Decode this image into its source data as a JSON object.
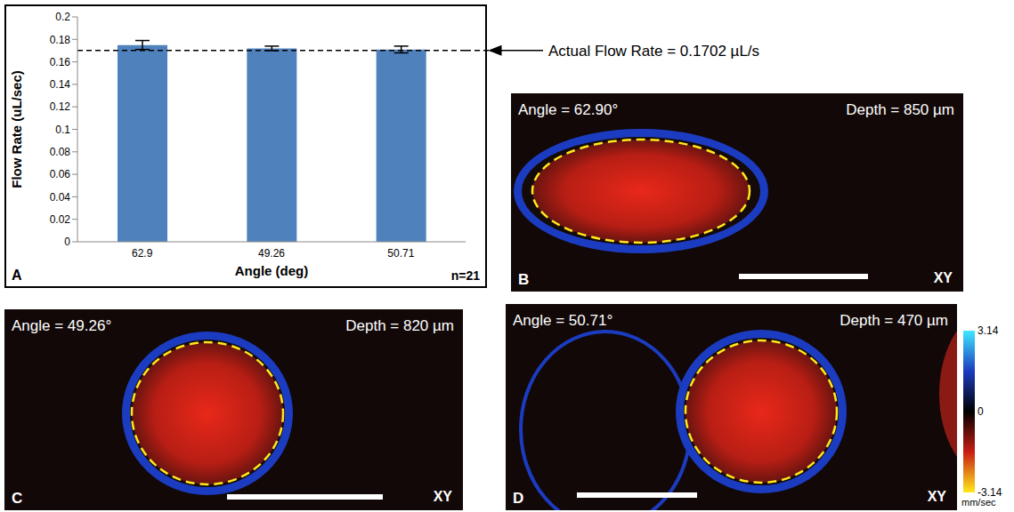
{
  "chart_data": {
    "type": "bar",
    "panel_label": "A",
    "categories": [
      "62.9",
      "49.26",
      "50.71"
    ],
    "values": [
      0.175,
      0.172,
      0.171
    ],
    "errors": [
      0.004,
      0.002,
      0.003
    ],
    "color": "#4f81bd",
    "xlabel": "Angle (deg)",
    "ylabel": "Flow Rate (uL/sec)",
    "ylim": [
      0,
      0.2
    ],
    "yticks": [
      0,
      0.02,
      0.04,
      0.06,
      0.08,
      0.1,
      0.12,
      0.14,
      0.16,
      0.18,
      0.2
    ],
    "annotation": "n=21",
    "reference_line": {
      "value": 0.1702,
      "label": "Actual Flow Rate = 0.1702 µL/s",
      "line_style": "dashed"
    }
  },
  "images": [
    {
      "panel_label": "B",
      "angle": "Angle = 62.90°",
      "depth": "Depth = 850 µm",
      "plane": "XY"
    },
    {
      "panel_label": "C",
      "angle": "Angle = 49.26°",
      "depth": "Depth = 820 µm",
      "plane": "XY"
    },
    {
      "panel_label": "D",
      "angle": "Angle = 50.71°",
      "depth": "Depth = 470 µm",
      "plane": "XY"
    }
  ],
  "colorbar": {
    "range": [
      -3.14,
      3.14
    ],
    "ticks": [
      3.14,
      0,
      -3.14
    ],
    "unit": "mm/sec"
  }
}
